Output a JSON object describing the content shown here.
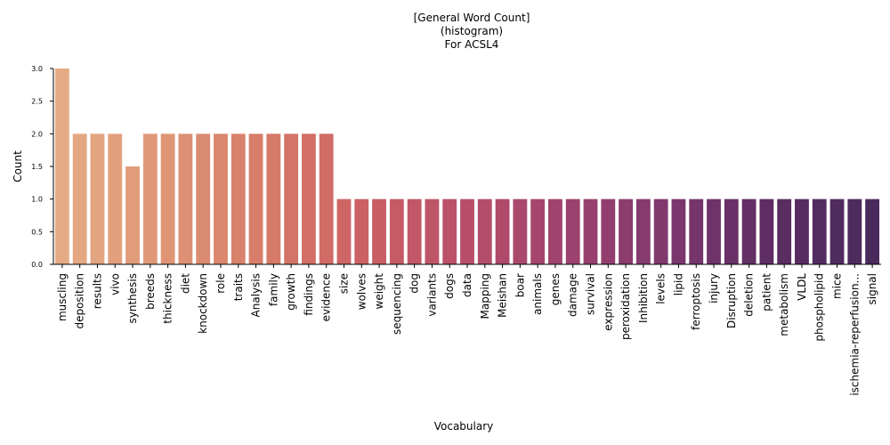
{
  "chart_data": {
    "type": "bar",
    "title_lines": [
      "[General Word Count]",
      "(histogram)",
      "For ACSL4"
    ],
    "xlabel": "Vocabulary",
    "ylabel": "Count",
    "ylim": [
      0,
      3.0
    ],
    "yticks": [
      "0.0",
      "0.5",
      "1.0",
      "1.5",
      "2.0",
      "2.5",
      "3.0"
    ],
    "grid": false,
    "categories": [
      "muscling",
      "deposition",
      "results",
      "vivo",
      "synthesis",
      "breeds",
      "thickness",
      "diet",
      "knockdown",
      "role",
      "traits",
      "Analysis",
      "family",
      "growth",
      "findings",
      "evidence",
      "size",
      "wolves",
      "weight",
      "sequencing",
      "dog",
      "variants",
      "dogs",
      "data",
      "Mapping",
      "Meishan",
      "boar",
      "animals",
      "genes",
      "damage",
      "survival",
      "expression",
      "peroxidation",
      "Inhibition",
      "levels",
      "lipid",
      "ferroptosis",
      "injury",
      "Disruption",
      "deletion",
      "patient",
      "metabolism",
      "VLDL",
      "phospholipid",
      "mice",
      "ischemia-reperfusion...",
      "signal"
    ],
    "values": [
      3,
      2,
      2,
      2,
      1.5,
      2,
      2,
      2,
      2,
      2,
      2,
      2,
      2,
      2,
      2,
      2,
      1,
      1,
      1,
      1,
      1,
      1,
      1,
      1,
      1,
      1,
      1,
      1,
      1,
      1,
      1,
      1,
      1,
      1,
      1,
      1,
      1,
      1,
      1,
      1,
      1,
      1,
      1,
      1,
      1,
      1,
      1
    ],
    "palette": "flare",
    "color_start": "#e5ab85",
    "color_end": "#4a2a5c"
  }
}
